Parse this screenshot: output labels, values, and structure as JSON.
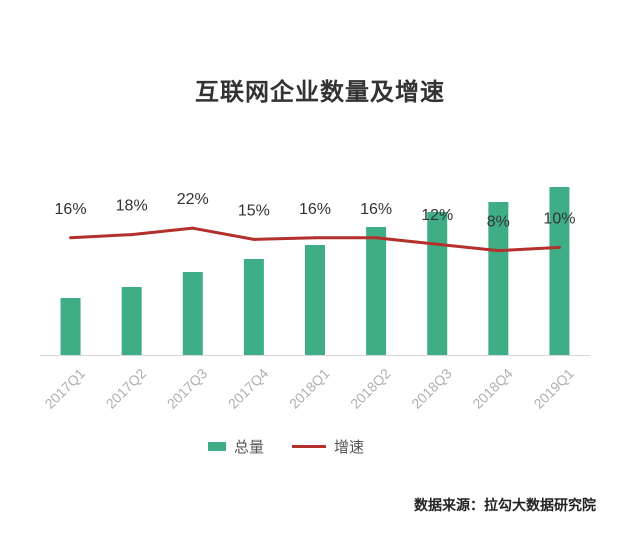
{
  "colors": {
    "bar": "#3fae86",
    "line": "#b3302c",
    "axis": "#d9d9d9",
    "tick_text": "#b0b0b0",
    "label_text": "#333333"
  },
  "legend": {
    "bar_label": "总量",
    "line_label": "增速"
  },
  "source": "数据来源：拉勾大数据研究院",
  "chart_data": {
    "type": "bar",
    "title": "互联网企业数量及增速",
    "categories": [
      "2017Q1",
      "2017Q2",
      "2017Q3",
      "2017Q4",
      "2018Q1",
      "2018Q2",
      "2018Q3",
      "2018Q4",
      "2019Q1"
    ],
    "series": [
      {
        "name": "总量",
        "type": "bar",
        "values": [
          57,
          68,
          83,
          96,
          110,
          128,
          143,
          153,
          168
        ],
        "color": "#3fae86"
      },
      {
        "name": "增速",
        "type": "line",
        "values": [
          16,
          18,
          22,
          15,
          16,
          16,
          12,
          8,
          10
        ],
        "labels": [
          "16%",
          "18%",
          "22%",
          "15%",
          "16%",
          "16%",
          "12%",
          "8%",
          "10%"
        ],
        "color": "#b3302c"
      }
    ],
    "bar_ylim": [
      0,
      175
    ],
    "line_ylim": [
      -57,
      52
    ],
    "xlabel": "",
    "ylabel": "",
    "grid": false,
    "legend_position": "bottom"
  }
}
